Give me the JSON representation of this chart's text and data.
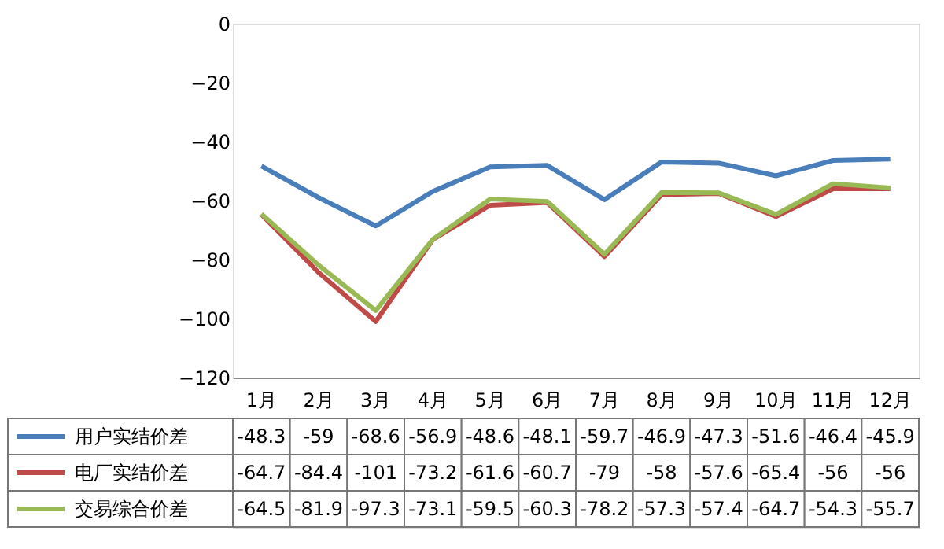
{
  "chart_data": {
    "type": "line",
    "categories": [
      "1月",
      "2月",
      "3月",
      "4月",
      "5月",
      "6月",
      "7月",
      "8月",
      "9月",
      "10月",
      "11月",
      "12月"
    ],
    "series": [
      {
        "name": "用户实结价差",
        "color": "#4a7ebb",
        "values": [
          -48.3,
          -59,
          -68.6,
          -56.9,
          -48.6,
          -48.1,
          -59.7,
          -46.9,
          -47.3,
          -51.6,
          -46.4,
          -45.9
        ]
      },
      {
        "name": "电厂实结价差",
        "color": "#be4b48",
        "values": [
          -64.7,
          -84.4,
          -101,
          -73.2,
          -61.6,
          -60.7,
          -79,
          -58,
          -57.6,
          -65.4,
          -56,
          -56
        ]
      },
      {
        "name": "交易综合价差",
        "color": "#98b954",
        "values": [
          -64.5,
          -81.9,
          -97.3,
          -73.1,
          -59.5,
          -60.3,
          -78.2,
          -57.3,
          -57.4,
          -64.7,
          -54.3,
          -55.7
        ]
      }
    ],
    "ylim": [
      -120,
      0
    ],
    "yticks": [
      0,
      -20,
      -40,
      -60,
      -80,
      -100,
      -120
    ],
    "data_labels": true,
    "legend": "bottom",
    "grid": false
  }
}
